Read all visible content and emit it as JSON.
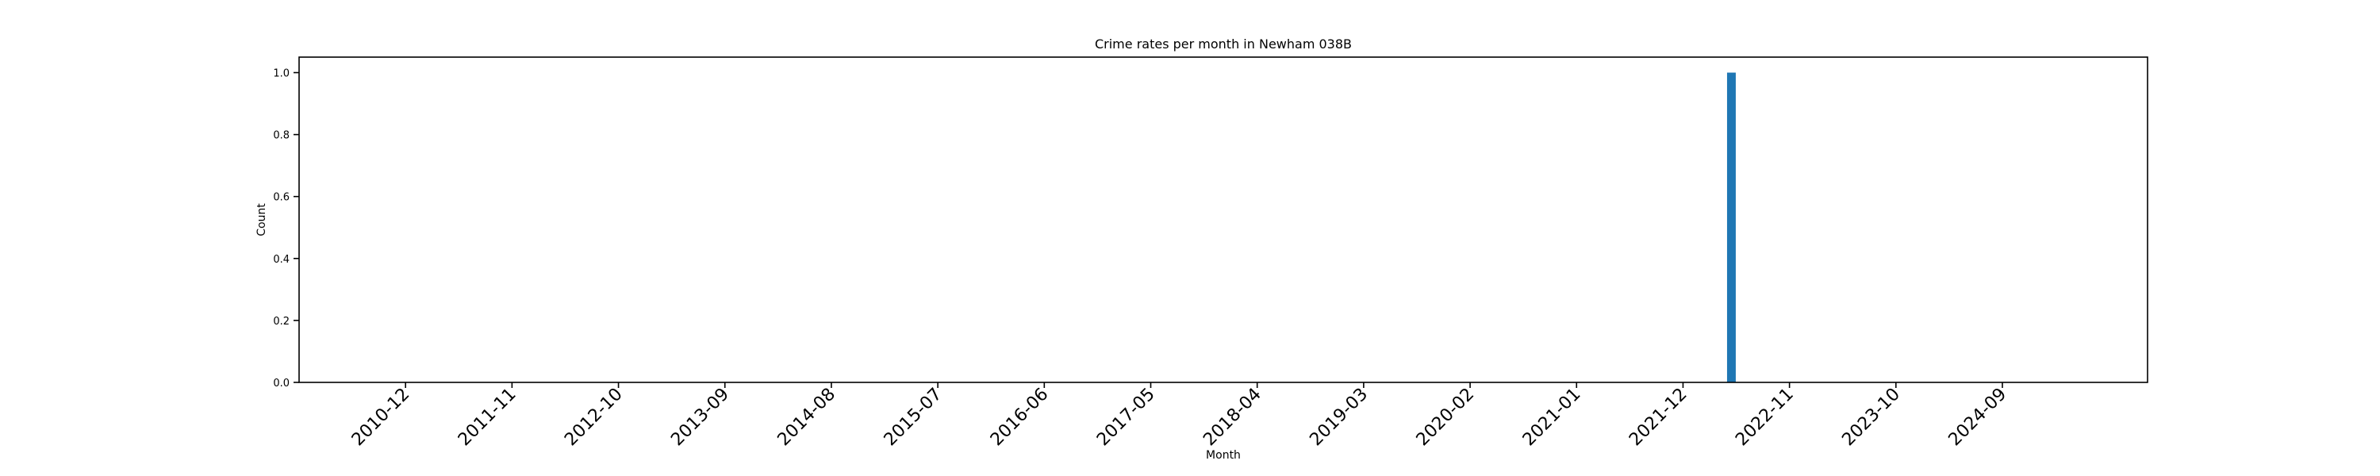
{
  "chart_data": {
    "type": "bar",
    "title": "Crime rates per month in Newham 038B",
    "xlabel": "Month",
    "ylabel": "Count",
    "ylim": [
      0,
      1.05
    ],
    "yticks": [
      0.0,
      0.2,
      0.4,
      0.6,
      0.8,
      1.0
    ],
    "ytick_labels": [
      "0.0",
      "0.2",
      "0.4",
      "0.6",
      "0.8",
      "1.0"
    ],
    "xlim": [
      "2010-01",
      "2025-12"
    ],
    "xticks": [
      "2010-12",
      "2011-11",
      "2012-10",
      "2013-09",
      "2014-08",
      "2015-07",
      "2016-06",
      "2017-05",
      "2018-04",
      "2019-03",
      "2020-02",
      "2021-01",
      "2021-12",
      "2022-11",
      "2023-10",
      "2024-09"
    ],
    "categories": [
      "2022-05"
    ],
    "values": [
      1
    ],
    "bar_color": "#1f77b4",
    "grid": false,
    "legend": false
  }
}
